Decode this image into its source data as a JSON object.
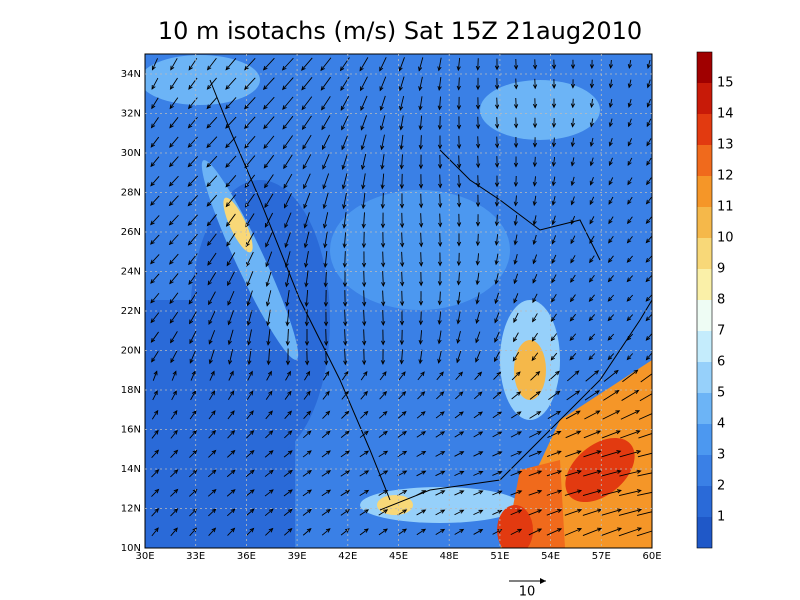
{
  "title": "10 m isotachs (m/s) Sat 15Z 21aug2010",
  "map": {
    "lat_labels": [
      "10N",
      "12N",
      "14N",
      "16N",
      "18N",
      "20N",
      "22N",
      "24N",
      "26N",
      "28N",
      "30N",
      "32N",
      "34N"
    ],
    "lon_labels": [
      "30E",
      "33E",
      "36E",
      "39E",
      "42E",
      "45E",
      "48E",
      "51E",
      "54E",
      "57E",
      "60E"
    ]
  },
  "colorbar": {
    "labels": [
      1,
      2,
      3,
      4,
      5,
      6,
      7,
      8,
      9,
      10,
      11,
      12,
      13,
      14,
      15
    ],
    "colors": [
      "#1f58c8",
      "#2a6ad8",
      "#3a80e6",
      "#4c98f0",
      "#6cb4f6",
      "#96d0fa",
      "#c4ecfc",
      "#eefcf4",
      "#faf0a8",
      "#f8d878",
      "#f5b84a",
      "#f59628",
      "#f06a1c",
      "#e23a10",
      "#c81a08",
      "#a00000"
    ]
  },
  "reference_vector": {
    "label": "10"
  }
}
